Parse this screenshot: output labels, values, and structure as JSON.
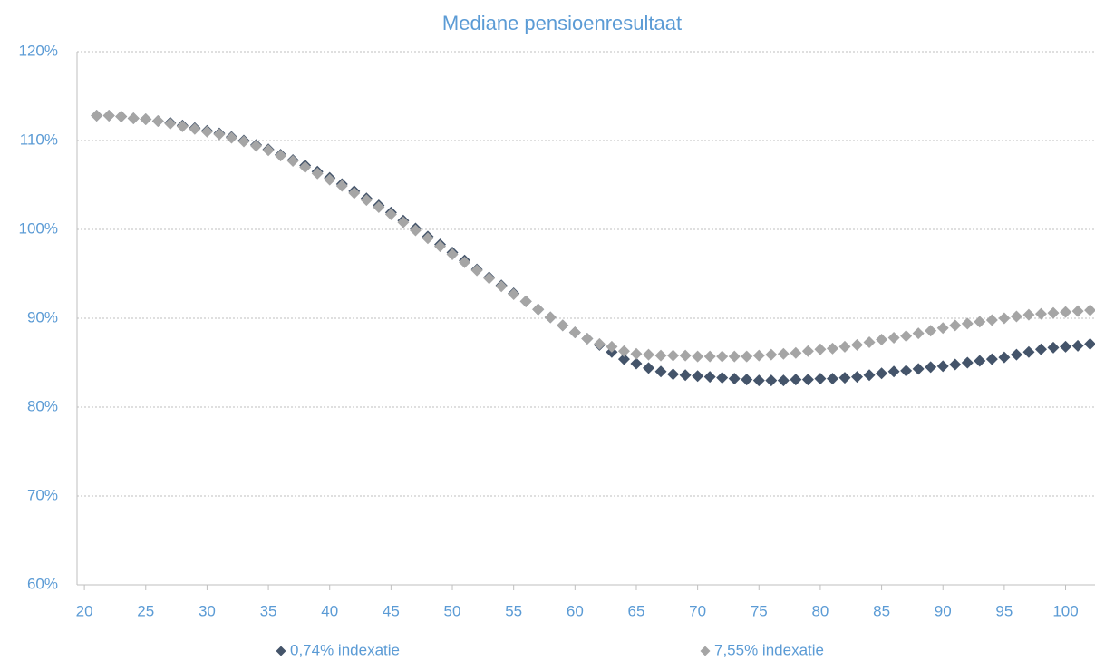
{
  "chart_data": {
    "type": "scatter",
    "title": "Mediane pensioenresultaat",
    "x": [
      21,
      22,
      23,
      24,
      25,
      26,
      27,
      28,
      29,
      30,
      31,
      32,
      33,
      34,
      35,
      36,
      37,
      38,
      39,
      40,
      41,
      42,
      43,
      44,
      45,
      46,
      47,
      48,
      49,
      50,
      51,
      52,
      53,
      54,
      55,
      56,
      57,
      58,
      59,
      60,
      61,
      62,
      63,
      64,
      65,
      66,
      67,
      68,
      69,
      70,
      71,
      72,
      73,
      74,
      75,
      76,
      77,
      78,
      79,
      80,
      81,
      82,
      83,
      84,
      85,
      86,
      87,
      88,
      89,
      90,
      91,
      92,
      93,
      94,
      95,
      96,
      97,
      98,
      99,
      100,
      101,
      102
    ],
    "series": [
      {
        "name": "0,74% indexatie",
        "color": "#44546a",
        "values": [
          112.8,
          112.8,
          112.7,
          112.5,
          112.4,
          112.2,
          112.0,
          111.7,
          111.4,
          111.1,
          110.8,
          110.4,
          110.0,
          109.5,
          109.0,
          108.4,
          107.8,
          107.2,
          106.5,
          105.8,
          105.1,
          104.3,
          103.5,
          102.7,
          101.9,
          101.0,
          100.1,
          99.2,
          98.3,
          97.4,
          96.5,
          95.5,
          94.6,
          93.7,
          92.8,
          91.9,
          91.0,
          90.1,
          89.2,
          88.4,
          87.7,
          87.0,
          86.2,
          85.4,
          84.9,
          84.4,
          84.0,
          83.7,
          83.6,
          83.5,
          83.4,
          83.3,
          83.2,
          83.1,
          83.0,
          83.0,
          83.0,
          83.1,
          83.1,
          83.2,
          83.2,
          83.3,
          83.4,
          83.6,
          83.8,
          84.0,
          84.1,
          84.3,
          84.5,
          84.6,
          84.8,
          85.0,
          85.2,
          85.4,
          85.6,
          85.9,
          86.2,
          86.5,
          86.7,
          86.8,
          86.9,
          87.1
        ]
      },
      {
        "name": "7,55% indexatie",
        "color": "#a5a5a5",
        "values": [
          112.8,
          112.8,
          112.7,
          112.5,
          112.4,
          112.2,
          111.9,
          111.6,
          111.3,
          111.0,
          110.7,
          110.3,
          109.9,
          109.4,
          108.9,
          108.3,
          107.7,
          107.0,
          106.3,
          105.6,
          104.9,
          104.1,
          103.3,
          102.5,
          101.7,
          100.8,
          99.9,
          99.0,
          98.1,
          97.2,
          96.3,
          95.4,
          94.5,
          93.6,
          92.7,
          91.9,
          91.0,
          90.1,
          89.2,
          88.4,
          87.7,
          87.1,
          86.8,
          86.3,
          86.0,
          85.9,
          85.8,
          85.8,
          85.8,
          85.7,
          85.7,
          85.7,
          85.7,
          85.7,
          85.8,
          85.9,
          86.0,
          86.1,
          86.3,
          86.5,
          86.6,
          86.8,
          87.0,
          87.3,
          87.6,
          87.8,
          88.0,
          88.3,
          88.6,
          88.9,
          89.2,
          89.4,
          89.6,
          89.8,
          90.0,
          90.2,
          90.4,
          90.5,
          90.6,
          90.7,
          90.8,
          90.9
        ]
      }
    ],
    "xlim": [
      19.4,
      102.4
    ],
    "ylim": [
      60,
      120
    ],
    "xticks": [
      20,
      25,
      30,
      35,
      40,
      45,
      50,
      55,
      60,
      65,
      70,
      75,
      80,
      85,
      90,
      95,
      100
    ],
    "yticks": [
      {
        "value": 60,
        "label": "60%"
      },
      {
        "value": 70,
        "label": "70%"
      },
      {
        "value": 80,
        "label": "80%"
      },
      {
        "value": 90,
        "label": "90%"
      },
      {
        "value": 100,
        "label": "100%"
      },
      {
        "value": 110,
        "label": "110%"
      },
      {
        "value": 120,
        "label": "120%"
      }
    ],
    "grid": true,
    "legend": "bottom"
  }
}
